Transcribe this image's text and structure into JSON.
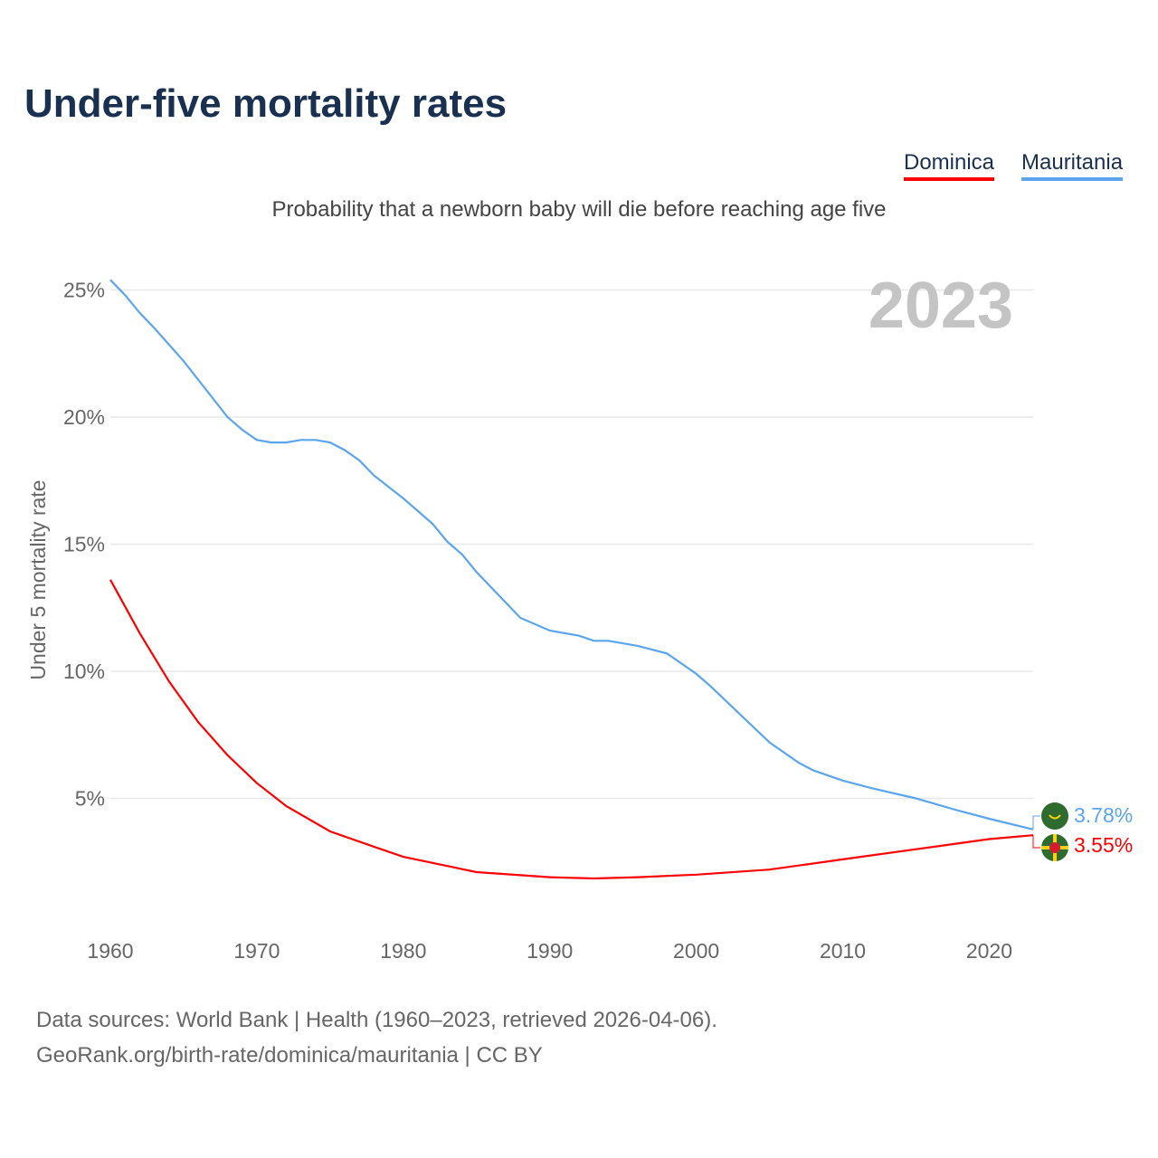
{
  "chart_data": {
    "type": "line",
    "title": "Under-five mortality rates",
    "subtitle": "Probability that a newborn baby will die before reaching age five",
    "ylabel": "Under 5 mortality rate",
    "xlabel": "",
    "year_label": "2023",
    "xlim": [
      1960,
      2023
    ],
    "ylim": [
      0,
      26
    ],
    "x_ticks": [
      1960,
      1970,
      1980,
      1990,
      2000,
      2010,
      2020
    ],
    "y_ticks": [
      5,
      10,
      15,
      20,
      25
    ],
    "y_tick_labels": [
      "5%",
      "10%",
      "15%",
      "20%",
      "25%"
    ],
    "grid": true,
    "legend_position": "top-right",
    "series": [
      {
        "name": "Dominica",
        "color": "#ff0000",
        "end_label": "3.55%",
        "points": [
          [
            1960,
            13.6
          ],
          [
            1962,
            11.5
          ],
          [
            1964,
            9.6
          ],
          [
            1966,
            8.0
          ],
          [
            1968,
            6.7
          ],
          [
            1970,
            5.6
          ],
          [
            1972,
            4.7
          ],
          [
            1975,
            3.7
          ],
          [
            1978,
            3.1
          ],
          [
            1980,
            2.7
          ],
          [
            1985,
            2.1
          ],
          [
            1990,
            1.9
          ],
          [
            1993,
            1.85
          ],
          [
            1996,
            1.9
          ],
          [
            2000,
            2.0
          ],
          [
            2005,
            2.2
          ],
          [
            2010,
            2.6
          ],
          [
            2015,
            3.0
          ],
          [
            2020,
            3.4
          ],
          [
            2023,
            3.55
          ]
        ]
      },
      {
        "name": "Mauritania",
        "color": "#5aa5ee",
        "end_label": "3.78%",
        "points": [
          [
            1960,
            25.4
          ],
          [
            1961,
            24.8
          ],
          [
            1962,
            24.1
          ],
          [
            1963,
            23.5
          ],
          [
            1965,
            22.2
          ],
          [
            1968,
            20.0
          ],
          [
            1969,
            19.5
          ],
          [
            1970,
            19.1
          ],
          [
            1971,
            19.0
          ],
          [
            1972,
            19.0
          ],
          [
            1973,
            19.1
          ],
          [
            1974,
            19.1
          ],
          [
            1975,
            19.0
          ],
          [
            1976,
            18.7
          ],
          [
            1977,
            18.3
          ],
          [
            1978,
            17.7
          ],
          [
            1980,
            16.8
          ],
          [
            1982,
            15.8
          ],
          [
            1983,
            15.1
          ],
          [
            1984,
            14.6
          ],
          [
            1985,
            13.9
          ],
          [
            1987,
            12.7
          ],
          [
            1988,
            12.1
          ],
          [
            1990,
            11.6
          ],
          [
            1992,
            11.4
          ],
          [
            1993,
            11.2
          ],
          [
            1994,
            11.2
          ],
          [
            1996,
            11.0
          ],
          [
            1998,
            10.7
          ],
          [
            2000,
            9.9
          ],
          [
            2001,
            9.4
          ],
          [
            2003,
            8.3
          ],
          [
            2005,
            7.2
          ],
          [
            2007,
            6.4
          ],
          [
            2008,
            6.1
          ],
          [
            2010,
            5.7
          ],
          [
            2012,
            5.4
          ],
          [
            2015,
            5.0
          ],
          [
            2018,
            4.5
          ],
          [
            2020,
            4.2
          ],
          [
            2023,
            3.78
          ]
        ]
      }
    ]
  },
  "footer": {
    "line1": "Data sources: World Bank | Health (1960–2023, retrieved 2026-04-06).",
    "line2": "GeoRank.org/birth-rate/dominica/mauritania | CC BY"
  }
}
